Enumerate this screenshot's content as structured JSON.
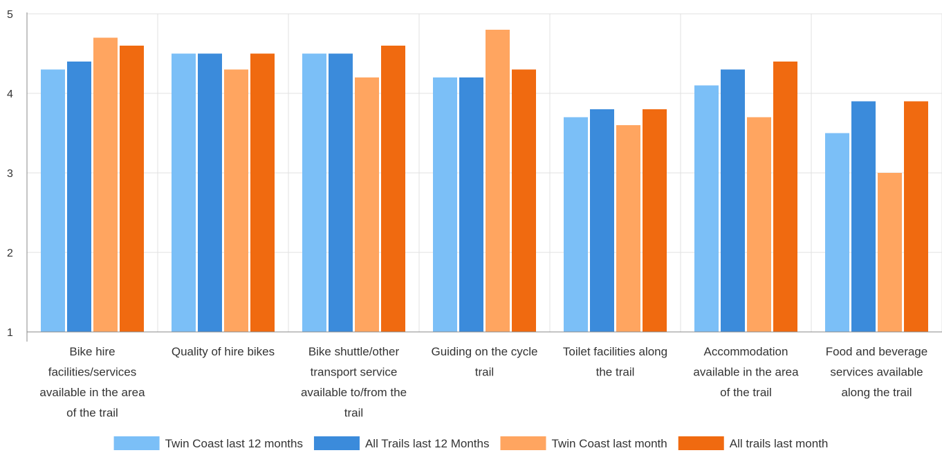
{
  "chart_data": {
    "type": "bar",
    "categories": [
      [
        "Bike hire",
        "facilities/services",
        "available in the area",
        "of the trail"
      ],
      [
        "Quality of hire bikes"
      ],
      [
        "Bike shuttle/other",
        "transport service",
        "available to/from the",
        "trail"
      ],
      [
        "Guiding on the cycle",
        "trail"
      ],
      [
        "Toilet facilities along",
        "the trail"
      ],
      [
        "Accommodation",
        "available in the area",
        "of the trail"
      ],
      [
        "Food and beverage",
        "services available",
        "along the trail"
      ]
    ],
    "series": [
      {
        "name": "Twin Coast last 12 months",
        "color": "#7bbff7",
        "values": [
          4.3,
          4.5,
          4.5,
          4.2,
          3.7,
          4.1,
          3.5
        ]
      },
      {
        "name": "All Trails last 12 Months",
        "color": "#3b8bdb",
        "values": [
          4.4,
          4.5,
          4.5,
          4.2,
          3.8,
          4.3,
          3.9
        ]
      },
      {
        "name": "Twin Coast last month",
        "color": "#ffa560",
        "values": [
          4.7,
          4.3,
          4.2,
          4.8,
          3.6,
          3.7,
          3.0
        ]
      },
      {
        "name": "All trails last month",
        "color": "#f06a10",
        "values": [
          4.6,
          4.5,
          4.6,
          4.3,
          3.8,
          4.4,
          3.9
        ]
      }
    ],
    "ylim": [
      1,
      5
    ],
    "yticks": [
      "1",
      "2",
      "3",
      "4",
      "5"
    ],
    "xlabel": "",
    "ylabel": "",
    "grid": true,
    "legend_position": "bottom"
  }
}
